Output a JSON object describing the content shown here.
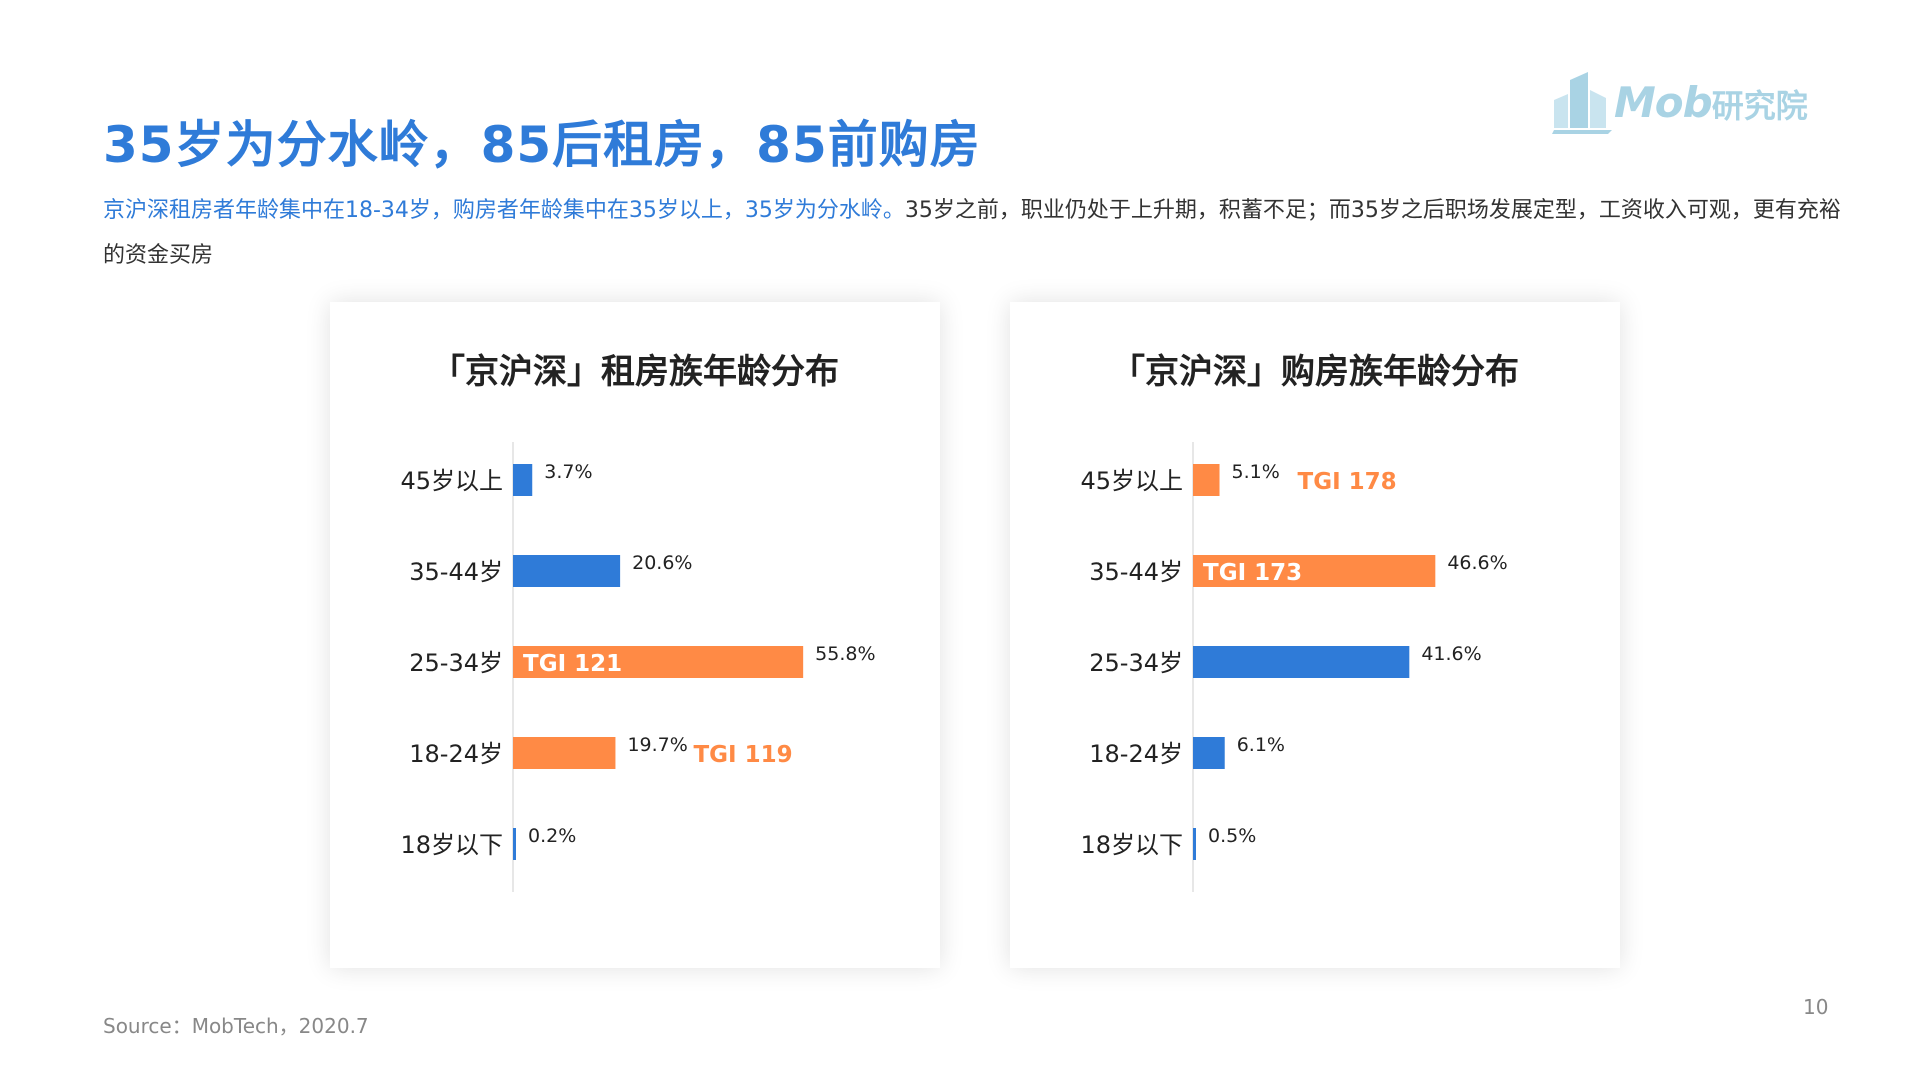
{
  "page": {
    "title": "35岁为分水岭，85后租房，85前购房",
    "subtitle_highlight": "京沪深租房者年龄集中在18-34岁，购房者年龄集中在35岁以上，35岁为分水岭。",
    "subtitle_rest": "35岁之前，职业仍处于上升期，积蓄不足；而35岁之后职场发展定型，工资收入可观，更有充裕的资金买房",
    "source": "Source：MobTech，2020.7",
    "page_number": "10",
    "logo_main": "Mob",
    "logo_cn": "研究院"
  },
  "colors": {
    "blue": "#2f7bd8",
    "orange": "#ff8a45",
    "logo": "#a9d3e4"
  },
  "chart_data": [
    {
      "type": "bar",
      "orientation": "horizontal",
      "title": "「京沪深」租房族年龄分布",
      "categories": [
        "45岁以上",
        "35-44岁",
        "25-34岁",
        "18-24岁",
        "18岁以下"
      ],
      "values": [
        3.7,
        20.6,
        55.8,
        19.7,
        0.2
      ],
      "value_labels": [
        "3.7%",
        "20.6%",
        "55.8%",
        "19.7%",
        "0.2%"
      ],
      "highlight": [
        false,
        false,
        true,
        true,
        false
      ],
      "tgi_labels": [
        "",
        "",
        "TGI 121",
        "TGI 119",
        ""
      ],
      "unit": "%"
    },
    {
      "type": "bar",
      "orientation": "horizontal",
      "title": "「京沪深」购房族年龄分布",
      "categories": [
        "45岁以上",
        "35-44岁",
        "25-34岁",
        "18-24岁",
        "18岁以下"
      ],
      "values": [
        5.1,
        46.6,
        41.6,
        6.1,
        0.5
      ],
      "value_labels": [
        "5.1%",
        "46.6%",
        "41.6%",
        "6.1%",
        "0.5%"
      ],
      "highlight": [
        true,
        true,
        false,
        false,
        false
      ],
      "tgi_labels": [
        "TGI 178",
        "TGI 173",
        "",
        "",
        ""
      ],
      "unit": "%"
    }
  ]
}
